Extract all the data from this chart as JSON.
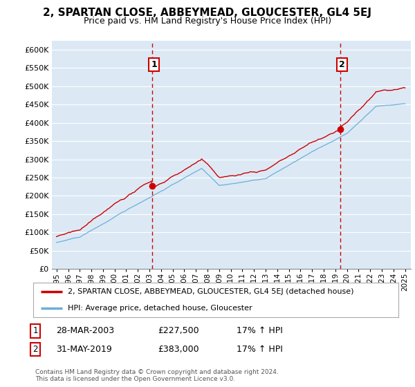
{
  "title": "2, SPARTAN CLOSE, ABBEYMEAD, GLOUCESTER, GL4 5EJ",
  "subtitle": "Price paid vs. HM Land Registry's House Price Index (HPI)",
  "legend_line1": "2, SPARTAN CLOSE, ABBEYMEAD, GLOUCESTER, GL4 5EJ (detached house)",
  "legend_line2": "HPI: Average price, detached house, Gloucester",
  "sale1_label": "1",
  "sale1_date": "28-MAR-2003",
  "sale1_price": "£227,500",
  "sale1_hpi": "17% ↑ HPI",
  "sale2_label": "2",
  "sale2_date": "31-MAY-2019",
  "sale2_price": "£383,000",
  "sale2_hpi": "17% ↑ HPI",
  "footnote": "Contains HM Land Registry data © Crown copyright and database right 2024.\nThis data is licensed under the Open Government Licence v3.0.",
  "hpi_color": "#6baed6",
  "property_color": "#cc0000",
  "dashed_line_color": "#cc0000",
  "ylim_min": 0,
  "ylim_max": 625000,
  "yticks": [
    0,
    50000,
    100000,
    150000,
    200000,
    250000,
    300000,
    350000,
    400000,
    450000,
    500000,
    550000,
    600000
  ],
  "background_color": "#ffffff",
  "chart_bg_color": "#dce9f5",
  "grid_color": "#ffffff",
  "sale1_year": 2003.24,
  "sale1_price_val": 227500,
  "sale2_year": 2019.42,
  "sale2_price_val": 383000
}
